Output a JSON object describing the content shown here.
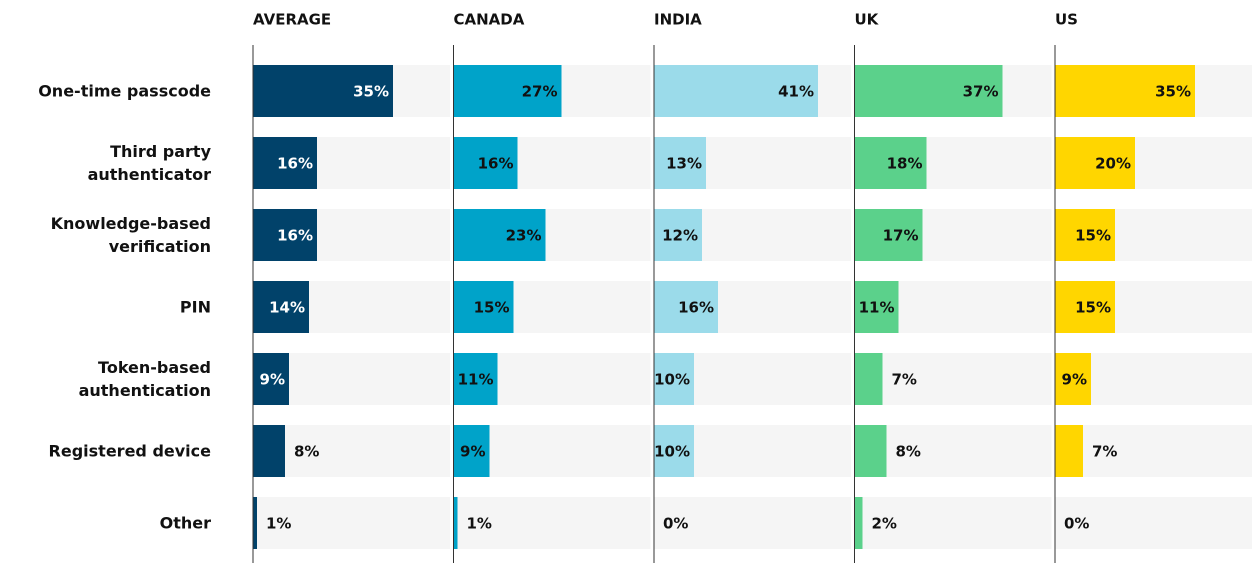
{
  "chart_data": {
    "type": "bar",
    "orientation": "horizontal",
    "categories": [
      "One-time passcode",
      "Third party authenticator",
      "Knowledge-based verification",
      "PIN",
      "Token-based authentication",
      "Registered device",
      "Other"
    ],
    "xlim": [
      0,
      50
    ],
    "series": [
      {
        "name": "AVERAGE",
        "color": "#01426a",
        "values": [
          35,
          16,
          16,
          14,
          9,
          8,
          1
        ],
        "value_labels": [
          "35%",
          "16%",
          "16%",
          "14%",
          "9%",
          "8%",
          "1%"
        ]
      },
      {
        "name": "CANADA",
        "color": "#00a3c9",
        "values": [
          27,
          16,
          23,
          15,
          11,
          9,
          1
        ],
        "value_labels": [
          "27%",
          "16%",
          "23%",
          "15%",
          "11%",
          "9%",
          "1%"
        ]
      },
      {
        "name": "INDIA",
        "color": "#9bdbea",
        "values": [
          41,
          13,
          12,
          16,
          10,
          10,
          0
        ],
        "value_labels": [
          "41%",
          "13%",
          "12%",
          "16%",
          "10%",
          "10%",
          "0%"
        ]
      },
      {
        "name": "UK",
        "color": "#5bd18b",
        "values": [
          37,
          18,
          17,
          11,
          7,
          8,
          2
        ],
        "value_labels": [
          "37%",
          "18%",
          "17%",
          "11%",
          "7%",
          "8%",
          "2%"
        ]
      },
      {
        "name": "US",
        "color": "#ffd600",
        "values": [
          35,
          20,
          15,
          15,
          9,
          7,
          0
        ],
        "value_labels": [
          "35%",
          "20%",
          "15%",
          "15%",
          "9%",
          "7%",
          "0%"
        ]
      }
    ]
  }
}
